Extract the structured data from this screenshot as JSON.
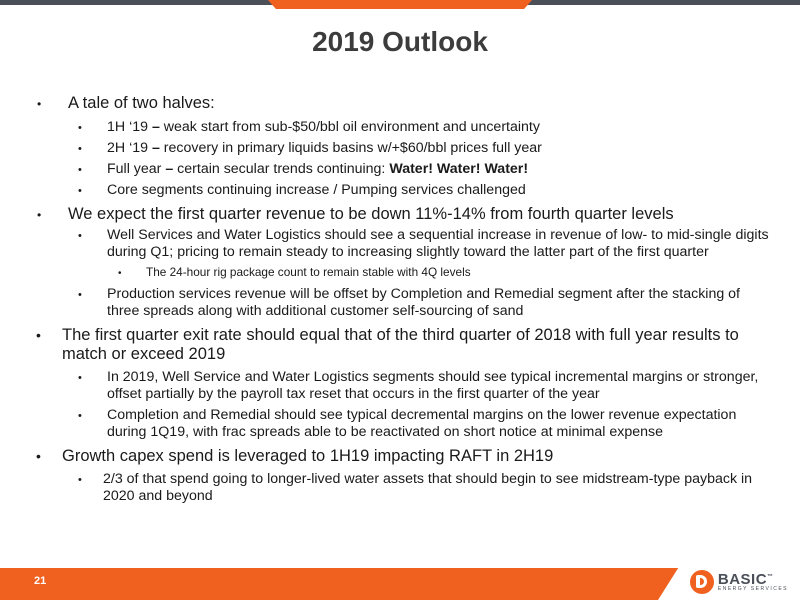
{
  "slide": {
    "title": "2019 Outlook",
    "page_number": "21"
  },
  "bullets": {
    "b1": {
      "text": "A tale of two halves:",
      "sub": [
        {
          "prefix": "1H ‘19 ",
          "dash": "–",
          "text": " weak start from sub-$50/bbl oil environment and uncertainty"
        },
        {
          "prefix": "2H ‘19 ",
          "dash": "–",
          "text": " recovery in primary liquids basins w/+$60/bbl prices full year"
        },
        {
          "prefix": "Full year ",
          "dash": "–",
          "text": " certain secular trends continuing: ",
          "bold": "Water! Water! Water!"
        },
        {
          "text": "Core segments continuing increase / Pumping services challenged"
        }
      ]
    },
    "b2": {
      "text": "We expect the first quarter revenue to be down 11%-14% from fourth quarter levels",
      "sub1": "Well Services and Water Logistics should see a sequential increase in revenue of low- to mid-single digits during Q1; pricing to remain steady to increasing slightly toward the latter part of the first quarter",
      "sub1_child": "The 24-hour rig package count to remain stable with 4Q levels",
      "sub2": "Production services revenue will be offset by Completion and Remedial segment after the stacking of three spreads along with additional customer self-sourcing of sand"
    },
    "b3": {
      "text": "The first quarter exit rate should equal that of the third quarter of 2018 with full year results to match or exceed 2019",
      "sub1": "In 2019, Well Service and Water Logistics segments should see typical incremental margins or stronger, offset partially by the payroll tax reset that occurs in the first quarter of the year",
      "sub2": "Completion and Remedial should see typical decremental margins on the lower revenue expectation during 1Q19, with frac spreads able to be reactivated on short notice at minimal expense"
    },
    "b4": {
      "text": "Growth capex spend is leveraged to 1H19 impacting RAFT in 2H19",
      "sub1": "2/3 of that spend going to longer-lived water assets that should begin to see midstream-type payback in 2020 and beyond"
    }
  },
  "logo": {
    "word": "BASIC",
    "tagline": "ENERGY SERVICES",
    "mark": "™"
  },
  "colors": {
    "accent": "#f0601f",
    "dark": "#4a4f58",
    "title": "#3c3c3c"
  }
}
